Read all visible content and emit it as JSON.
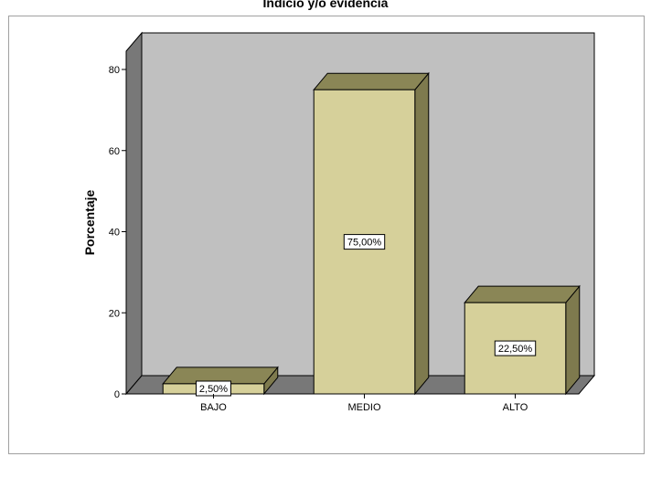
{
  "chart_data": {
    "type": "bar",
    "title": "Indicio y/o evidencia",
    "xlabel": "",
    "ylabel": "Porcentaje",
    "categories": [
      "BAJO",
      "MEDIO",
      "ALTO"
    ],
    "values": [
      2.5,
      75.0,
      22.5
    ],
    "data_labels": [
      "2,50%",
      "75,00%",
      "22,50%"
    ],
    "ylim": [
      0,
      80
    ],
    "yticks": [
      0,
      20,
      40,
      60,
      80
    ],
    "ytick_labels": [
      "0",
      "20",
      "40",
      "60",
      "80"
    ],
    "style": "3d",
    "legend": "none",
    "grid": false,
    "colors": {
      "bar_front": "#d6d09a",
      "bar_top": "#8a8656",
      "bar_side": "#7e7a4e",
      "back_wall": "#c0c0c0",
      "side_wall": "#787878",
      "floor": "#787878"
    }
  }
}
